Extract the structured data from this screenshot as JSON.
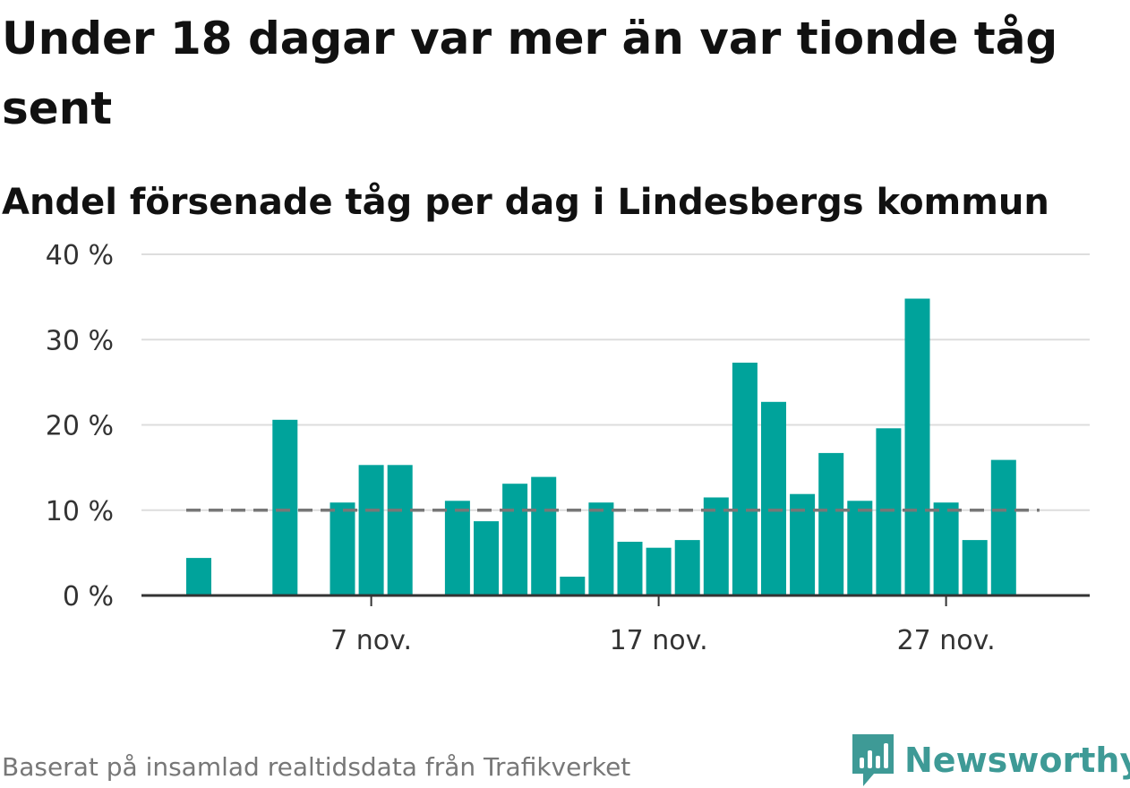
{
  "header": {
    "title": "Under 18 dagar var mer än var tionde tåg sent",
    "subtitle": "Andel försenade tåg per dag i Lindesbergs kommun"
  },
  "footer": {
    "source": "Baserat på insamlad realtidsdata från Trafikverket",
    "brand": "Newsworthy",
    "brand_icon": "newsworthy-logo-icon"
  },
  "colors": {
    "bar": "#00a39b",
    "reference_line": "#777777",
    "grid": "#dddddd",
    "axis": "#333333",
    "brand": "#3e9a96"
  },
  "chart_data": {
    "type": "bar",
    "title": "Under 18 dagar var mer än var tionde tåg sent",
    "subtitle": "Andel försenade tåg per dag i Lindesbergs kommun",
    "xlabel": "",
    "ylabel": "",
    "x_start": 1,
    "x_end": 30,
    "x_ticks": [
      {
        "day": 7,
        "label": "7 nov."
      },
      {
        "day": 17,
        "label": "17 nov."
      },
      {
        "day": 27,
        "label": "27 nov."
      }
    ],
    "y_ticks": [
      {
        "value": 0,
        "label": "0 %"
      },
      {
        "value": 10,
        "label": "10 %"
      },
      {
        "value": 20,
        "label": "20 %"
      },
      {
        "value": 30,
        "label": "30 %"
      },
      {
        "value": 40,
        "label": "40 %"
      }
    ],
    "ylim": [
      0,
      40
    ],
    "grid": true,
    "reference_line": {
      "value": 10,
      "style": "dashed",
      "from_day": 1,
      "to_day": 30
    },
    "values": [
      {
        "day": 1,
        "value": 4.4
      },
      {
        "day": 4,
        "value": 20.6
      },
      {
        "day": 6,
        "value": 10.9
      },
      {
        "day": 7,
        "value": 15.3
      },
      {
        "day": 8,
        "value": 15.3
      },
      {
        "day": 10,
        "value": 11.1
      },
      {
        "day": 11,
        "value": 8.7
      },
      {
        "day": 12,
        "value": 13.1
      },
      {
        "day": 13,
        "value": 13.9
      },
      {
        "day": 14,
        "value": 2.2
      },
      {
        "day": 15,
        "value": 10.9
      },
      {
        "day": 16,
        "value": 6.3
      },
      {
        "day": 17,
        "value": 5.6
      },
      {
        "day": 18,
        "value": 6.5
      },
      {
        "day": 19,
        "value": 11.5
      },
      {
        "day": 20,
        "value": 27.3
      },
      {
        "day": 21,
        "value": 22.7
      },
      {
        "day": 22,
        "value": 11.9
      },
      {
        "day": 23,
        "value": 16.7
      },
      {
        "day": 24,
        "value": 11.1
      },
      {
        "day": 25,
        "value": 19.6
      },
      {
        "day": 26,
        "value": 34.8
      },
      {
        "day": 27,
        "value": 10.9
      },
      {
        "day": 28,
        "value": 6.5
      },
      {
        "day": 29,
        "value": 15.9
      }
    ]
  }
}
